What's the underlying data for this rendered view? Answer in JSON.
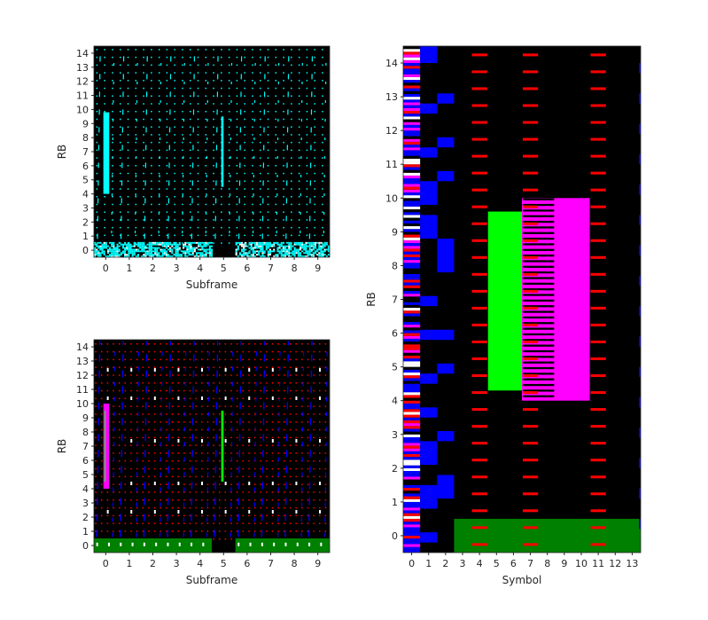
{
  "chart_data": [
    {
      "type": "heatmap",
      "xlabel": "Subframe",
      "ylabel": "RB",
      "x_ticks": [
        "0",
        "1",
        "2",
        "3",
        "4",
        "5",
        "6",
        "7",
        "8",
        "9"
      ],
      "y_ticks": [
        "0",
        "1",
        "2",
        "3",
        "4",
        "5",
        "6",
        "7",
        "8",
        "9",
        "10",
        "11",
        "12",
        "13",
        "14"
      ],
      "xlim": [
        -0.5,
        9.5
      ],
      "ylim": [
        -0.5,
        14.5
      ],
      "background": "#000000",
      "colors": {
        "data": "#00ffff"
      },
      "blocks": [
        {
          "x0": -0.1,
          "x1": 0.15,
          "y0": 4.0,
          "y1": 9.8,
          "color": "#00ffff"
        },
        {
          "x0": 4.9,
          "x1": 5.0,
          "y0": 4.5,
          "y1": 9.5,
          "color": "#00ffff"
        }
      ],
      "bottom_band": {
        "y0": -0.5,
        "y1": 0.5,
        "gap": [
          4.5,
          5.5
        ],
        "color": "#00ffff"
      }
    },
    {
      "type": "heatmap",
      "xlabel": "Subframe",
      "ylabel": "RB",
      "x_ticks": [
        "0",
        "1",
        "2",
        "3",
        "4",
        "5",
        "6",
        "7",
        "8",
        "9"
      ],
      "y_ticks": [
        "0",
        "1",
        "2",
        "3",
        "4",
        "5",
        "6",
        "7",
        "8",
        "9",
        "10",
        "11",
        "12",
        "13",
        "14"
      ],
      "xlim": [
        -0.5,
        9.5
      ],
      "ylim": [
        -0.5,
        14.5
      ],
      "background": "#000000",
      "colors": {
        "dots": "#ff0000",
        "lines": "#0000ff",
        "band": "#008000"
      },
      "blocks": [
        {
          "x0": -0.1,
          "x1": 0.15,
          "y0": 4.0,
          "y1": 10.0,
          "color": "#ff00ff"
        },
        {
          "x0": -0.05,
          "x1": 0.0,
          "y0": 4.5,
          "y1": 9.5,
          "color": "#00ff00"
        },
        {
          "x0": 4.9,
          "x1": 5.0,
          "y0": 4.5,
          "y1": 9.5,
          "color": "#00ff00"
        }
      ],
      "bottom_band": {
        "y0": -0.5,
        "y1": 0.5,
        "gap": [
          4.5,
          5.5
        ],
        "color": "#008000"
      }
    },
    {
      "type": "heatmap",
      "xlabel": "Symbol",
      "ylabel": "RB",
      "x_ticks": [
        "0",
        "1",
        "2",
        "3",
        "4",
        "5",
        "6",
        "7",
        "8",
        "9",
        "10",
        "11",
        "12",
        "13"
      ],
      "y_ticks": [
        "0",
        "1",
        "2",
        "3",
        "4",
        "5",
        "6",
        "7",
        "8",
        "9",
        "10",
        "11",
        "12",
        "13",
        "14"
      ],
      "xlim": [
        -0.5,
        13.5
      ],
      "ylim": [
        -0.5,
        14.5
      ],
      "background": "#000000",
      "reference_symbols": [
        0,
        4,
        7,
        11
      ],
      "colors": {
        "reference": "#ff0000",
        "control": "#0000ff"
      },
      "blocks": [
        {
          "x0": 0.5,
          "x1": 1.5,
          "y0": 14.0,
          "y1": 14.5,
          "color": "#0000ff"
        },
        {
          "x0": 1.5,
          "x1": 2.5,
          "y0": 12.8,
          "y1": 13.1,
          "color": "#0000ff"
        },
        {
          "x0": 0.5,
          "x1": 1.5,
          "y0": 12.5,
          "y1": 12.8,
          "color": "#0000ff"
        },
        {
          "x0": 1.5,
          "x1": 2.5,
          "y0": 11.5,
          "y1": 11.8,
          "color": "#0000ff"
        },
        {
          "x0": 0.5,
          "x1": 1.5,
          "y0": 11.2,
          "y1": 11.5,
          "color": "#0000ff"
        },
        {
          "x0": 1.5,
          "x1": 2.5,
          "y0": 10.5,
          "y1": 10.8,
          "color": "#0000ff"
        },
        {
          "x0": 0.5,
          "x1": 1.5,
          "y0": 9.8,
          "y1": 10.5,
          "color": "#0000ff"
        },
        {
          "x0": 0.5,
          "x1": 1.5,
          "y0": 8.8,
          "y1": 9.5,
          "color": "#0000ff"
        },
        {
          "x0": 1.5,
          "x1": 2.5,
          "y0": 7.8,
          "y1": 8.8,
          "color": "#0000ff"
        },
        {
          "x0": 0.5,
          "x1": 1.5,
          "y0": 6.8,
          "y1": 7.1,
          "color": "#0000ff"
        },
        {
          "x0": 0.5,
          "x1": 2.5,
          "y0": 5.8,
          "y1": 6.1,
          "color": "#0000ff"
        },
        {
          "x0": 1.5,
          "x1": 2.5,
          "y0": 4.8,
          "y1": 5.1,
          "color": "#0000ff"
        },
        {
          "x0": 0.5,
          "x1": 1.5,
          "y0": 4.5,
          "y1": 4.8,
          "color": "#0000ff"
        },
        {
          "x0": 0.5,
          "x1": 1.5,
          "y0": 3.5,
          "y1": 3.8,
          "color": "#0000ff"
        },
        {
          "x0": 1.5,
          "x1": 2.5,
          "y0": 2.8,
          "y1": 3.1,
          "color": "#0000ff"
        },
        {
          "x0": 0.5,
          "x1": 1.5,
          "y0": 2.1,
          "y1": 2.8,
          "color": "#0000ff"
        },
        {
          "x0": 1.5,
          "x1": 2.5,
          "y0": 1.1,
          "y1": 1.8,
          "color": "#0000ff"
        },
        {
          "x0": 0.5,
          "x1": 1.5,
          "y0": 0.8,
          "y1": 1.5,
          "color": "#0000ff"
        },
        {
          "x0": 0.5,
          "x1": 1.5,
          "y0": -0.2,
          "y1": 0.1,
          "color": "#0000ff"
        },
        {
          "x0": 2.5,
          "x1": 13.5,
          "y0": -0.5,
          "y1": 0.5,
          "color": "#008000"
        },
        {
          "x0": 4.5,
          "x1": 6.5,
          "y0": 4.3,
          "y1": 9.6,
          "color": "#00ff00"
        },
        {
          "x0": 6.5,
          "x1": 10.5,
          "y0": 4.0,
          "y1": 10.0,
          "color": "#ff00ff"
        }
      ]
    }
  ]
}
